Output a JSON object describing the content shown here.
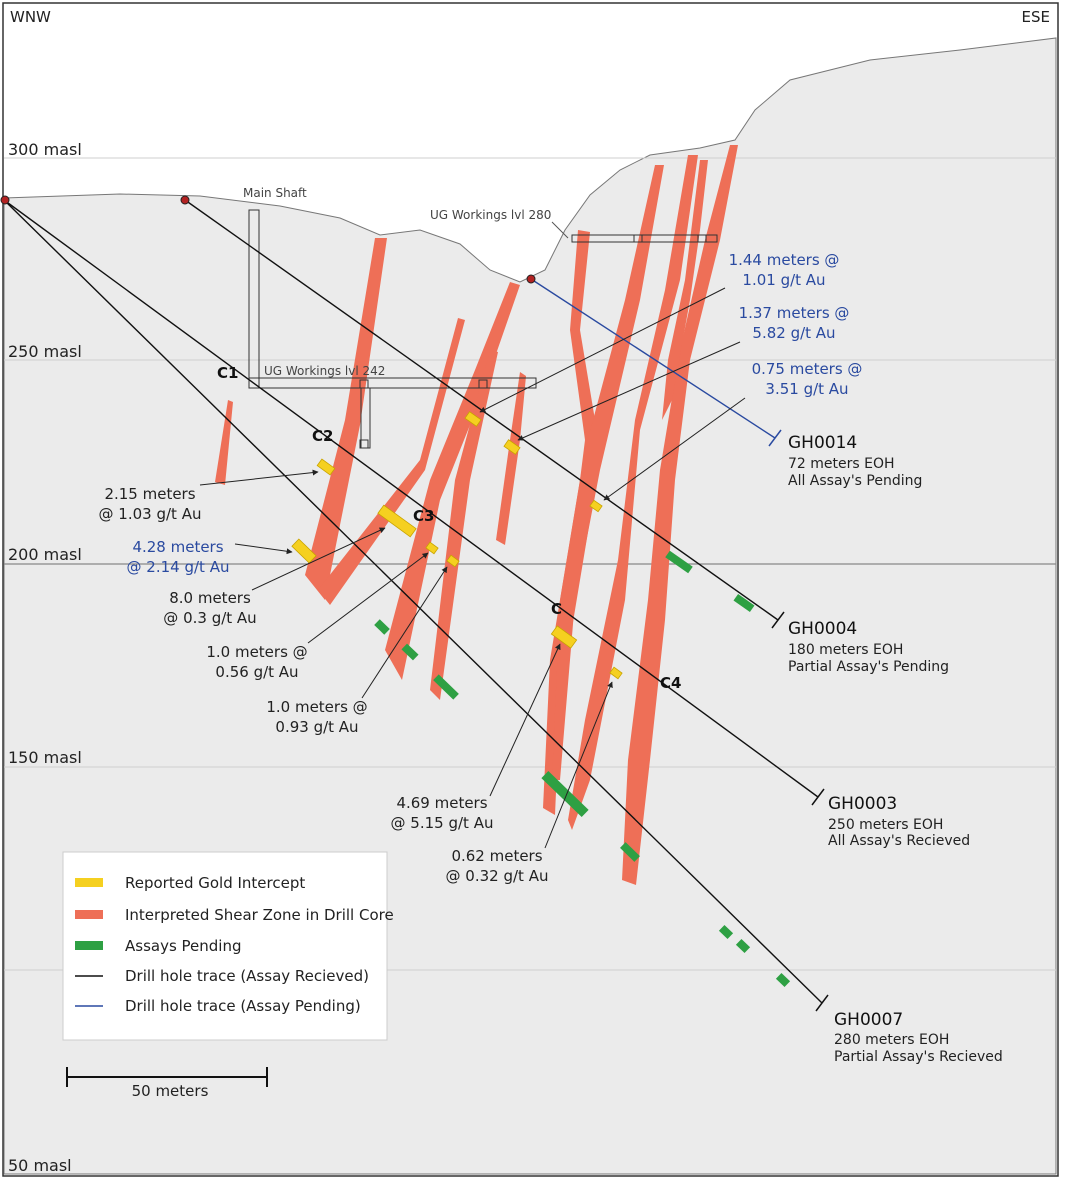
{
  "orientation": {
    "west": "WNW",
    "east": "ESE"
  },
  "elevations": [
    "300 masl",
    "250 masl",
    "200 masl",
    "150 masl",
    "50 masl"
  ],
  "workings": {
    "main_shaft": "Main Shaft",
    "ug_280": "UG Workings lvl 280",
    "ug_242": "UG Workings lvl 242"
  },
  "zones": [
    "C1",
    "C2",
    "C3",
    "C",
    "C4"
  ],
  "holes": [
    {
      "id": "GH0014",
      "length": "72 meters EOH",
      "status": "All Assay's Pending"
    },
    {
      "id": "GH0004",
      "length": "180 meters EOH",
      "status": "Partial Assay's Pending"
    },
    {
      "id": "GH0003",
      "length": "250 meters EOH",
      "status": "All Assay's Recieved"
    },
    {
      "id": "GH0007",
      "length": "280 meters EOH",
      "status": "Partial Assay's Recieved"
    }
  ],
  "intercepts": [
    {
      "line1": "1.44 meters @",
      "line2": "1.01 g/t Au"
    },
    {
      "line1": "1.37 meters @",
      "line2": "5.82 g/t Au"
    },
    {
      "line1": "0.75 meters @",
      "line2": "3.51 g/t Au"
    },
    {
      "line1": "2.15 meters",
      "line2": "@ 1.03 g/t Au"
    },
    {
      "line1": "4.28 meters",
      "line2": "@ 2.14 g/t Au"
    },
    {
      "line1": "8.0 meters",
      "line2": "@ 0.3 g/t Au"
    },
    {
      "line1": "1.0 meters @",
      "line2": "0.56 g/t Au"
    },
    {
      "line1": "1.0 meters @",
      "line2": "0.93 g/t Au"
    },
    {
      "line1": "4.69 meters",
      "line2": "@ 5.15 g/t Au"
    },
    {
      "line1": "0.62 meters",
      "line2": "@ 0.32 g/t Au"
    }
  ],
  "legend": [
    {
      "label": "Reported Gold Intercept",
      "color": "#f5d020"
    },
    {
      "label": "Interpreted Shear Zone in Drill Core",
      "color": "#ee6f57"
    },
    {
      "label": "Assays Pending",
      "color": "#2ea043"
    },
    {
      "label": "Drill hole trace (Assay Recieved)",
      "color": "#111111"
    },
    {
      "label": "Drill hole trace (Assay Pending)",
      "color": "#2a4aa0"
    }
  ],
  "scale_bar": {
    "label": "50 meters"
  },
  "colors": {
    "ground": "#ebebeb",
    "shear": "#ee6f57",
    "intercept": "#f5d020",
    "pending": "#2ea043",
    "trace_received": "#111111",
    "trace_pending": "#2a4aa0"
  }
}
